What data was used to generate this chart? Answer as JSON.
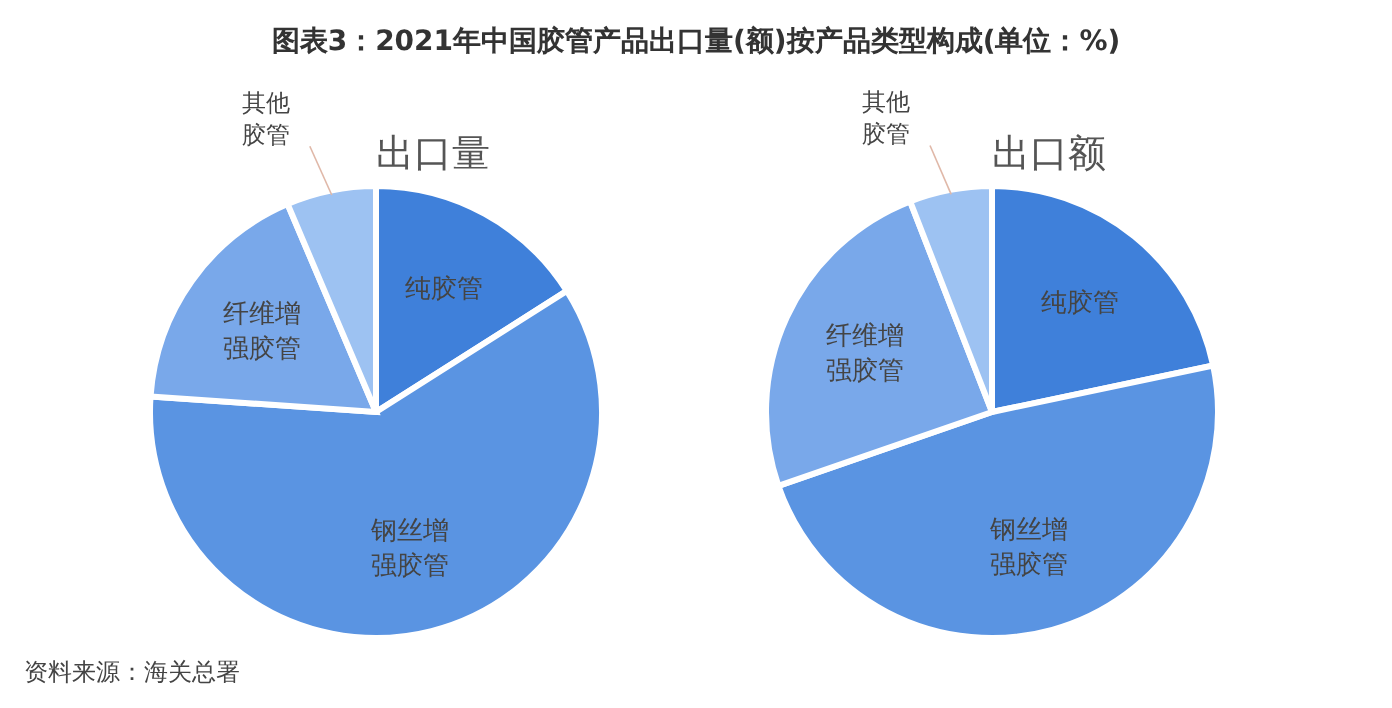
{
  "chart_data": [
    {
      "type": "pie",
      "title": "图表3：2021年中国胶管产品出口量(额)按产品类型构成(单位：%)",
      "subtitle": "出口量",
      "categories": [
        "纯胶管",
        "钢丝增强胶管",
        "纤维增强胶管",
        "其他胶管"
      ],
      "values": [
        16,
        60.1,
        17.5,
        6.4
      ],
      "colors": [
        "#3f80da",
        "#5a94e2",
        "#79a8ea",
        "#9dc2f2"
      ],
      "annotations": [
        "资料来源：海关总署"
      ]
    },
    {
      "type": "pie",
      "subtitle": "出口额",
      "categories": [
        "纯胶管",
        "钢丝增强胶管",
        "纤维增强胶管",
        "其他胶管"
      ],
      "values": [
        21.7,
        48,
        24.4,
        5.9
      ],
      "colors": [
        "#3f80da",
        "#5a94e2",
        "#79a8ea",
        "#9dc2f2"
      ]
    }
  ]
}
